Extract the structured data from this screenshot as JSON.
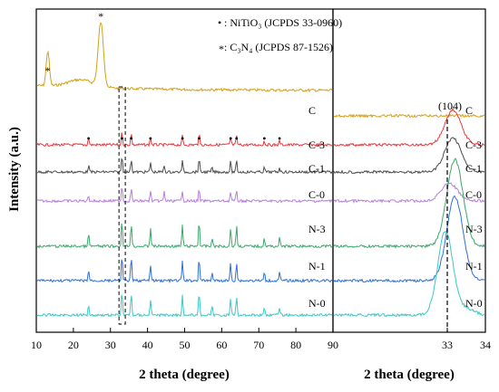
{
  "chart_data": [
    {
      "type": "line",
      "panel": "main",
      "xlabel": "2 theta (degree)",
      "ylabel": "Intensity (a.u.)",
      "xlim": [
        10,
        90
      ],
      "xticks": [
        10,
        20,
        30,
        40,
        50,
        60,
        70,
        80,
        90
      ],
      "xtick_labels": [
        "10",
        "20",
        "30",
        "40",
        "50",
        "60",
        "70",
        "80",
        "90"
      ],
      "legend": {
        "placement": "top-center",
        "entries": [
          {
            "marker": "•",
            "text": ": NiTiO₃ (JCPDS 33-0960)"
          },
          {
            "marker": "*",
            "text": ": C₃N₄ (JCPDS 87-1526)"
          }
        ]
      },
      "series": [
        {
          "name": "C",
          "color": "#d4a017",
          "baseline": 0.0,
          "peaks": [
            [
              13.1,
              0.55
            ],
            [
              27.4,
              1.0
            ]
          ]
        },
        {
          "name": "C-3",
          "color": "#e8383d",
          "baseline": 0.0,
          "peaks": [
            [
              24.1,
              0.35
            ],
            [
              33.1,
              0.7
            ],
            [
              35.6,
              0.6
            ],
            [
              40.8,
              0.4
            ],
            [
              49.4,
              0.45
            ],
            [
              53.9,
              0.6
            ],
            [
              62.4,
              0.4
            ],
            [
              64.0,
              0.45
            ],
            [
              71.5,
              0.2
            ],
            [
              75.6,
              0.2
            ]
          ]
        },
        {
          "name": "C-1",
          "color": "#4d4d4d",
          "baseline": 0.0,
          "peaks": [
            [
              24.1,
              0.3
            ],
            [
              33.1,
              0.75
            ],
            [
              35.6,
              0.6
            ],
            [
              40.8,
              0.45
            ],
            [
              44.5,
              0.3
            ],
            [
              49.4,
              0.5
            ],
            [
              53.9,
              0.6
            ],
            [
              57.4,
              0.2
            ],
            [
              62.4,
              0.45
            ],
            [
              64.0,
              0.5
            ],
            [
              71.5,
              0.2
            ],
            [
              75.6,
              0.2
            ]
          ]
        },
        {
          "name": "C-0",
          "color": "#b57edc",
          "baseline": 0.0,
          "peaks": [
            [
              24.1,
              0.25
            ],
            [
              33.1,
              0.7
            ],
            [
              35.6,
              0.55
            ],
            [
              40.8,
              0.4
            ],
            [
              44.5,
              0.4
            ],
            [
              49.4,
              0.45
            ],
            [
              53.9,
              0.5
            ],
            [
              62.4,
              0.4
            ],
            [
              64.0,
              0.45
            ]
          ]
        },
        {
          "name": "N-3",
          "color": "#3aa86b",
          "baseline": 0.0,
          "peaks": [
            [
              24.1,
              0.45
            ],
            [
              33.1,
              1.0
            ],
            [
              35.6,
              0.9
            ],
            [
              40.8,
              0.7
            ],
            [
              49.4,
              0.8
            ],
            [
              53.9,
              1.0
            ],
            [
              57.4,
              0.3
            ],
            [
              62.4,
              0.7
            ],
            [
              64.0,
              0.8
            ],
            [
              71.5,
              0.3
            ],
            [
              75.6,
              0.3
            ]
          ]
        },
        {
          "name": "N-1",
          "color": "#2f6fd6",
          "baseline": 0.0,
          "peaks": [
            [
              24.1,
              0.4
            ],
            [
              33.1,
              0.95
            ],
            [
              35.6,
              0.85
            ],
            [
              40.8,
              0.6
            ],
            [
              49.4,
              0.75
            ],
            [
              53.9,
              0.9
            ],
            [
              57.4,
              0.3
            ],
            [
              62.4,
              0.65
            ],
            [
              64.0,
              0.7
            ],
            [
              71.5,
              0.3
            ],
            [
              75.6,
              0.3
            ]
          ]
        },
        {
          "name": "N-0",
          "color": "#3cc6c6",
          "baseline": 0.0,
          "peaks": [
            [
              24.1,
              0.4
            ],
            [
              33.1,
              0.95
            ],
            [
              35.6,
              0.85
            ],
            [
              40.8,
              0.6
            ],
            [
              49.4,
              0.75
            ],
            [
              53.9,
              0.9
            ],
            [
              57.4,
              0.3
            ],
            [
              62.4,
              0.65
            ],
            [
              64.0,
              0.7
            ],
            [
              71.5,
              0.3
            ],
            [
              75.6,
              0.3
            ]
          ]
        }
      ],
      "annotations": [
        {
          "text": "*",
          "x": 13.1,
          "series": "C"
        },
        {
          "text": "*",
          "x": 27.4,
          "series": "C"
        },
        {
          "text": "•",
          "x": 24.1,
          "series": "C-3"
        },
        {
          "text": "•",
          "x": 33.1,
          "series": "C-3"
        },
        {
          "text": "•",
          "x": 35.6,
          "series": "C-3"
        },
        {
          "text": "•",
          "x": 40.8,
          "series": "C-3"
        },
        {
          "text": "•",
          "x": 49.4,
          "series": "C-3"
        },
        {
          "text": "•",
          "x": 53.9,
          "series": "C-3"
        },
        {
          "text": "•",
          "x": 62.4,
          "series": "C-3"
        },
        {
          "text": "•",
          "x": 64.0,
          "series": "C-3"
        },
        {
          "text": "•",
          "x": 71.5,
          "series": "C-3"
        },
        {
          "text": "•",
          "x": 75.6,
          "series": "C-3"
        }
      ],
      "highlight_box_x": [
        32.3,
        34.0
      ]
    },
    {
      "type": "line",
      "panel": "zoom",
      "xlabel": "2 theta (degree)",
      "xlim": [
        30,
        34
      ],
      "xticks": [
        30,
        33,
        34
      ],
      "xtick_labels": [
        "",
        "33",
        "34"
      ],
      "reference_line_x": 33.0,
      "reference_label": "(104)",
      "series": [
        {
          "name": "C",
          "color": "#d4a017",
          "peak_x": null,
          "peak_h": 0.0
        },
        {
          "name": "C-3",
          "color": "#e8383d",
          "peak_x": 33.15,
          "peak_h": 0.8
        },
        {
          "name": "C-1",
          "color": "#4d4d4d",
          "peak_x": 33.15,
          "peak_h": 0.75
        },
        {
          "name": "C-0",
          "color": "#b57edc",
          "peak_x": 33.05,
          "peak_h": 0.55
        },
        {
          "name": "N-3",
          "color": "#3aa86b",
          "peak_x": 33.2,
          "peak_h": 1.4
        },
        {
          "name": "N-1",
          "color": "#2f6fd6",
          "peak_x": 33.2,
          "peak_h": 1.35
        },
        {
          "name": "N-0",
          "color": "#3cc6c6",
          "peak_x": 32.95,
          "peak_h": 1.35
        }
      ]
    }
  ]
}
